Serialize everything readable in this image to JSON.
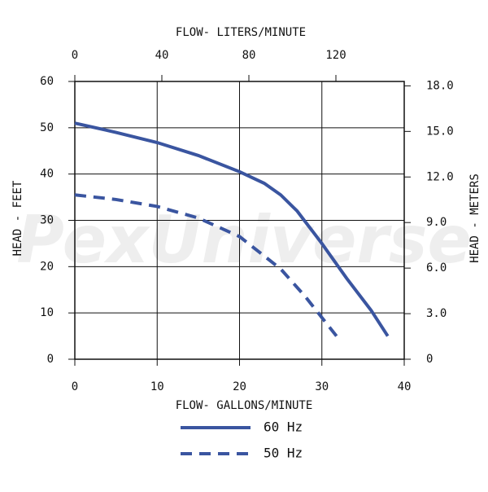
{
  "chart_data": {
    "type": "line",
    "watermark": "PexUniverse",
    "xlabel": "FLOW- GALLONS/MINUTE",
    "x2label": "FLOW- LITERS/MINUTE",
    "ylabel": "HEAD - FEET",
    "y2label": "HEAD - METERS",
    "xlim": [
      0,
      40
    ],
    "xticks": [
      0,
      10,
      20,
      30,
      40
    ],
    "x2lim": [
      0,
      151.4
    ],
    "x2ticks": [
      0,
      40,
      80,
      120
    ],
    "ylim": [
      0,
      60
    ],
    "yticks": [
      0,
      10,
      20,
      30,
      40,
      50,
      60
    ],
    "y2lim": [
      0,
      18.29
    ],
    "y2ticks": [
      0,
      {
        "value": 3,
        "label": "3.0"
      },
      {
        "value": 6,
        "label": "6.0"
      },
      {
        "value": 9,
        "label": "9.0"
      },
      {
        "value": 12,
        "label": "12.0"
      },
      {
        "value": 15,
        "label": "15.0"
      },
      {
        "value": 18,
        "label": "18.0"
      }
    ],
    "grid": true,
    "series": [
      {
        "name": "60 Hz",
        "color": "#3a55a0",
        "dash": false,
        "x": [
          0,
          5,
          10,
          15,
          20,
          23,
          25,
          27,
          30,
          33,
          36,
          38
        ],
        "values": [
          51,
          49,
          46.8,
          44,
          40.5,
          38,
          35.5,
          32,
          25,
          17.5,
          10.5,
          5
        ]
      },
      {
        "name": "50 Hz",
        "color": "#3a55a0",
        "dash": true,
        "x": [
          0,
          5,
          10,
          15,
          20,
          25,
          28,
          30,
          32
        ],
        "values": [
          35.5,
          34.5,
          33,
          30.5,
          26.5,
          19.5,
          13.5,
          9,
          4.5
        ]
      }
    ]
  }
}
